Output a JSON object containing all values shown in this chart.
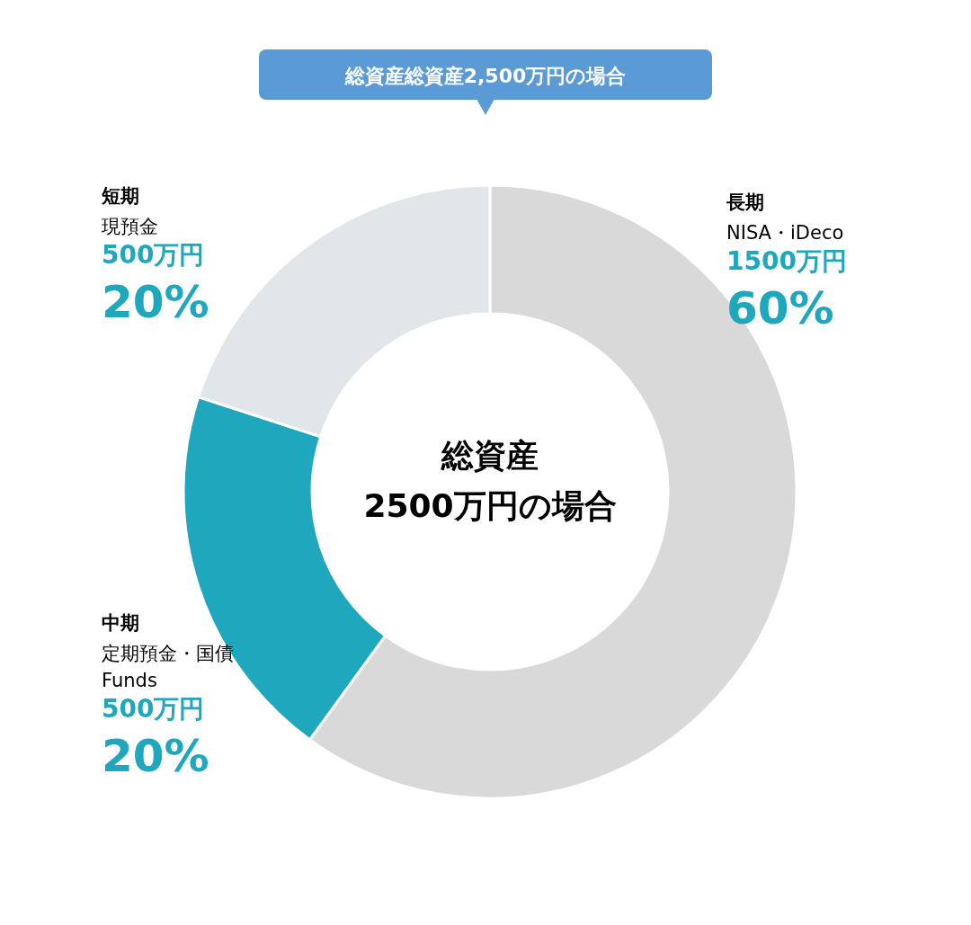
{
  "chart_data": {
    "type": "donut",
    "title": "総資産総資産2,500万円の場合",
    "categories": [
      "長期",
      "中期",
      "短期"
    ],
    "values": [
      60,
      20,
      20
    ],
    "value_labels": [
      "60%",
      "20%",
      "20%"
    ],
    "colors": [
      "#d9d9d9",
      "#1fa7bd",
      "#e0e6ea"
    ],
    "annotations": [
      "総資産\n2500万円の場合",
      {
        "text": "NISA・iDeco",
        "x": "長期"
      },
      {
        "text": "1500万円",
        "x": "長期"
      },
      {
        "text": "定期預金・国債\nFunds",
        "x": "中期"
      },
      {
        "text": "500万円",
        "x": "中期"
      },
      {
        "text": "現預金",
        "x": "短期"
      },
      {
        "text": "500万円",
        "x": "短期"
      }
    ]
  }
}
